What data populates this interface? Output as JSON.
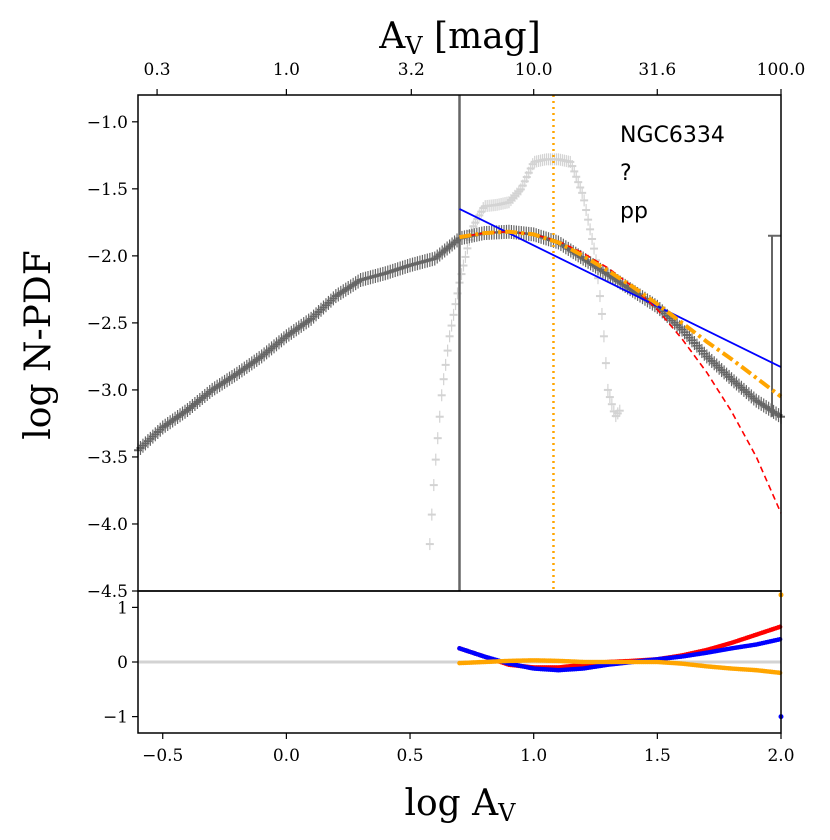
{
  "chart_data": [
    {
      "panel": "main",
      "type": "line",
      "title": "",
      "xlabel": "log A_V",
      "ylabel": "log N-PDF",
      "top_xlabel": "A_V [mag]",
      "xlim": [
        -0.6,
        2.0
      ],
      "ylim": [
        -4.5,
        -0.8
      ],
      "yticks": [
        -1.0,
        -1.5,
        -2.0,
        -2.5,
        -3.0,
        -3.5,
        -4.0,
        -4.5
      ],
      "ytick_labels": [
        "−1.0",
        "−1.5",
        "−2.0",
        "−2.5",
        "−3.0",
        "−3.5",
        "−4.0",
        "−4.5"
      ],
      "top_ticks": [
        0.3,
        1.0,
        3.2,
        10.0,
        31.6,
        100.0
      ],
      "top_tick_labels": [
        "0.3",
        "1.0",
        "3.2",
        "10.0",
        "31.6",
        "100.0"
      ],
      "annotations": [
        "NGC6334",
        "?",
        "pp"
      ],
      "vlines": [
        {
          "name": "threshold",
          "x": 0.7,
          "color": "#666666",
          "style": "solid"
        },
        {
          "name": "peak",
          "x": 1.08,
          "color": "#ffa500",
          "style": "dotted"
        }
      ],
      "series": [
        {
          "name": "N-PDF (full map)",
          "color": "#666666",
          "x": [
            -0.6,
            -0.5,
            -0.4,
            -0.3,
            -0.2,
            -0.1,
            0.0,
            0.1,
            0.2,
            0.3,
            0.4,
            0.5,
            0.6,
            0.7,
            0.8,
            0.9,
            1.0,
            1.1,
            1.2,
            1.3,
            1.4,
            1.5,
            1.6,
            1.7,
            1.8,
            1.9,
            2.0
          ],
          "y": [
            -3.45,
            -3.28,
            -3.15,
            -3.0,
            -2.88,
            -2.75,
            -2.6,
            -2.47,
            -2.3,
            -2.18,
            -2.13,
            -2.07,
            -2.02,
            -1.87,
            -1.83,
            -1.82,
            -1.84,
            -1.9,
            -2.02,
            -2.14,
            -2.26,
            -2.38,
            -2.55,
            -2.75,
            -2.92,
            -3.08,
            -3.2
          ]
        },
        {
          "name": "N-PDF (above threshold, light)",
          "color": "#d3d3d3",
          "x": [
            0.58,
            0.6,
            0.63,
            0.66,
            0.7,
            0.75,
            0.8,
            0.85,
            0.9,
            0.95,
            1.0,
            1.05,
            1.1,
            1.15,
            1.2,
            1.25,
            1.28,
            1.3,
            1.33,
            1.35
          ],
          "y": [
            -4.15,
            -3.6,
            -3.0,
            -2.6,
            -2.2,
            -1.8,
            -1.63,
            -1.62,
            -1.6,
            -1.5,
            -1.3,
            -1.28,
            -1.28,
            -1.3,
            -1.55,
            -2.0,
            -2.5,
            -3.0,
            -3.2,
            -3.15
          ]
        },
        {
          "name": "power-law fit",
          "color": "#0000ff",
          "style": "solid",
          "x": [
            0.7,
            2.0
          ],
          "y": [
            -1.65,
            -2.83
          ]
        },
        {
          "name": "lognormal fit",
          "color": "#ff0000",
          "style": "dashed",
          "x": [
            0.7,
            0.8,
            0.9,
            1.0,
            1.1,
            1.2,
            1.3,
            1.4,
            1.5,
            1.6,
            1.7,
            1.8,
            1.9,
            2.0
          ],
          "y": [
            -1.86,
            -1.83,
            -1.82,
            -1.84,
            -1.89,
            -1.98,
            -2.09,
            -2.23,
            -2.4,
            -2.62,
            -2.87,
            -3.16,
            -3.5,
            -3.92
          ]
        },
        {
          "name": "combined fit",
          "color": "#ffa500",
          "style": "dashdot",
          "x": [
            0.7,
            0.8,
            0.9,
            1.0,
            1.1,
            1.2,
            1.3,
            1.4,
            1.5,
            1.6,
            1.7,
            1.8,
            1.9,
            2.0
          ],
          "y": [
            -1.86,
            -1.83,
            -1.82,
            -1.84,
            -1.9,
            -2.0,
            -2.11,
            -2.23,
            -2.36,
            -2.5,
            -2.64,
            -2.77,
            -2.91,
            -3.05
          ]
        }
      ]
    },
    {
      "panel": "residuals",
      "type": "scatter",
      "xlabel": "log A_V",
      "xlim": [
        -0.6,
        2.0
      ],
      "ylim": [
        -1.3,
        1.3
      ],
      "xticks": [
        -0.5,
        0.0,
        0.5,
        1.0,
        1.5,
        2.0
      ],
      "xtick_labels": [
        "−0.5",
        "0.0",
        "0.5",
        "1.0",
        "1.5",
        "2.0"
      ],
      "yticks": [
        1,
        0,
        -1
      ],
      "ytick_labels": [
        "1",
        "0",
        "−1"
      ],
      "zero_line_color": "#d3d3d3",
      "series": [
        {
          "name": "lognormal residual",
          "color": "#ff0000",
          "x": [
            0.7,
            0.8,
            0.9,
            1.0,
            1.1,
            1.2,
            1.3,
            1.4,
            1.5,
            1.6,
            1.7,
            1.8,
            1.9,
            2.0
          ],
          "y": [
            0.25,
            0.1,
            -0.05,
            -0.1,
            -0.1,
            -0.05,
            0.0,
            0.02,
            0.05,
            0.12,
            0.22,
            0.35,
            0.5,
            0.65
          ]
        },
        {
          "name": "power-law residual",
          "color": "#0000ff",
          "x": [
            0.7,
            0.8,
            0.9,
            1.0,
            1.1,
            1.2,
            1.3,
            1.4,
            1.5,
            1.6,
            1.7,
            1.8,
            1.9,
            2.0
          ],
          "y": [
            0.25,
            0.1,
            -0.03,
            -0.12,
            -0.15,
            -0.12,
            -0.05,
            0.0,
            0.05,
            0.1,
            0.17,
            0.25,
            0.32,
            0.42
          ]
        },
        {
          "name": "combined residual",
          "color": "#ffa500",
          "x": [
            0.7,
            0.8,
            0.9,
            1.0,
            1.1,
            1.2,
            1.3,
            1.4,
            1.5,
            1.6,
            1.7,
            1.8,
            1.9,
            2.0
          ],
          "y": [
            -0.02,
            0.0,
            0.02,
            0.03,
            0.02,
            0.0,
            0.0,
            0.0,
            0.0,
            -0.03,
            -0.08,
            -0.12,
            -0.15,
            -0.2
          ]
        },
        {
          "name": "outliers",
          "color": "#0000ff",
          "x": [
            2.0
          ],
          "y": [
            -1.0
          ]
        },
        {
          "name": "outlier top",
          "color": "#ffa500",
          "x": [
            2.0
          ],
          "y": [
            1.23
          ]
        }
      ]
    }
  ]
}
